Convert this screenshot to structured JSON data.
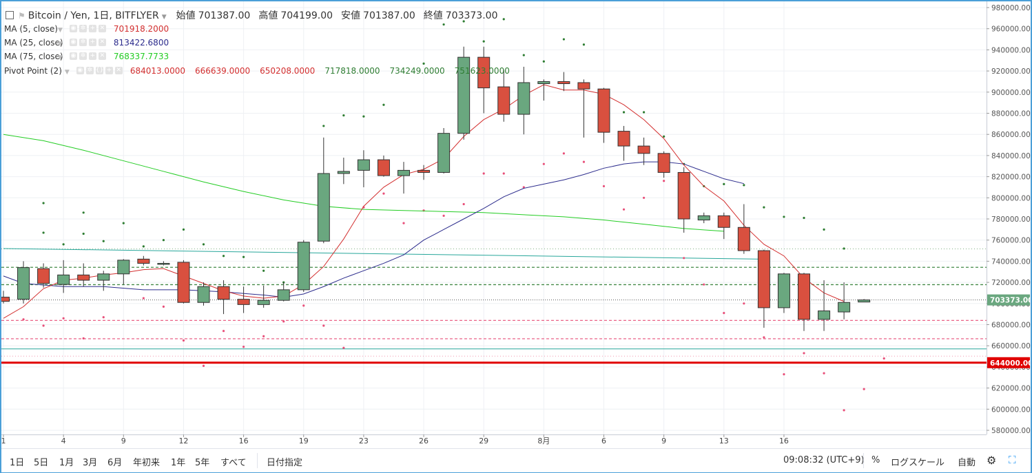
{
  "header": {
    "title": "Bitcoin / Yen, 1日, BITFLYER",
    "ohlc": [
      {
        "label": "始値",
        "value": "701387.00"
      },
      {
        "label": "高値",
        "value": "704199.00"
      },
      {
        "label": "安値",
        "value": "701387.00"
      },
      {
        "label": "終値",
        "value": "703373.00"
      }
    ]
  },
  "indicators": [
    {
      "name": "MA (5, close)",
      "values": [
        "701918.2000"
      ],
      "colors": [
        "#d32f2f"
      ]
    },
    {
      "name": "MA (25, close)",
      "values": [
        "813422.6800"
      ],
      "colors": [
        "#2b2b8c"
      ]
    },
    {
      "name": "MA (75, close)",
      "values": [
        "768337.7733"
      ],
      "colors": [
        "#22cc22"
      ]
    },
    {
      "name": "Pivot Point (2)",
      "values": [
        "684013.0000",
        "666639.0000",
        "650208.0000",
        "717818.0000",
        "734249.0000",
        "751623.0000"
      ],
      "colors": [
        "#d32f2f",
        "#d32f2f",
        "#d32f2f",
        "#2e7d32",
        "#2e7d32",
        "#2e7d32"
      ]
    }
  ],
  "bottom_bar": {
    "ranges": [
      "1日",
      "5日",
      "1月",
      "3月",
      "6月",
      "年初来",
      "1年",
      "5年",
      "すべて"
    ],
    "date_button": "日付指定",
    "time": "09:08:32 (UTC+9)",
    "percent": "%",
    "log_scale": "ログスケール",
    "auto": "自動",
    "settings_icon": "gear-icon",
    "fullscreen_icon": "fullscreen-icon"
  },
  "chart_data": {
    "type": "candlestick",
    "title": "Bitcoin / Yen, 1日, BITFLYER",
    "colors": {
      "up": "#6aa77f",
      "down": "#d9503f",
      "ma5": "#d32f2f",
      "ma25": "#2b2b8c",
      "ma75": "#22cc22",
      "trend": "#26a69a",
      "pivot_support": "#e8507a",
      "pivot_resistance": "#2e7d32",
      "hline": "#e00000"
    },
    "y_axis": {
      "min": 570000,
      "max": 985000,
      "ticks": [
        580000,
        600000,
        620000,
        640000,
        660000,
        680000,
        700000,
        720000,
        740000,
        760000,
        780000,
        800000,
        820000,
        840000,
        860000,
        880000,
        900000,
        920000,
        940000,
        960000,
        980000
      ]
    },
    "x_axis": {
      "first_index": 1,
      "last_index": 43.7,
      "ticks": [
        {
          "i": 1,
          "label": "1"
        },
        {
          "i": 4,
          "label": "4"
        },
        {
          "i": 7,
          "label": "9"
        },
        {
          "i": 10,
          "label": "12"
        },
        {
          "i": 13,
          "label": "16"
        },
        {
          "i": 16,
          "label": "19"
        },
        {
          "i": 19,
          "label": "23"
        },
        {
          "i": 22,
          "label": "26"
        },
        {
          "i": 25,
          "label": "29"
        },
        {
          "i": 28,
          "label": "8月"
        },
        {
          "i": 31,
          "label": "6"
        },
        {
          "i": 34,
          "label": "9"
        },
        {
          "i": 37,
          "label": "13"
        },
        {
          "i": 40,
          "label": "16"
        }
      ]
    },
    "candles": [
      {
        "o": 706000,
        "h": 712000,
        "l": 700000,
        "c": 702000
      },
      {
        "o": 704000,
        "h": 740000,
        "l": 700000,
        "c": 734000
      },
      {
        "o": 733000,
        "h": 738000,
        "l": 715000,
        "c": 719000
      },
      {
        "o": 718000,
        "h": 741000,
        "l": 710000,
        "c": 727000
      },
      {
        "o": 727000,
        "h": 738000,
        "l": 716000,
        "c": 722000
      },
      {
        "o": 722000,
        "h": 731000,
        "l": 712000,
        "c": 728000
      },
      {
        "o": 728000,
        "h": 742000,
        "l": 718000,
        "c": 741000
      },
      {
        "o": 742000,
        "h": 745000,
        "l": 736000,
        "c": 738000
      },
      {
        "o": 738000,
        "h": 740000,
        "l": 736000,
        "c": 738000
      },
      {
        "o": 739000,
        "h": 741000,
        "l": 700000,
        "c": 701000
      },
      {
        "o": 701000,
        "h": 720000,
        "l": 698000,
        "c": 716000
      },
      {
        "o": 716000,
        "h": 722000,
        "l": 690000,
        "c": 704000
      },
      {
        "o": 704000,
        "h": 716000,
        "l": 691000,
        "c": 699000
      },
      {
        "o": 699000,
        "h": 717000,
        "l": 696000,
        "c": 703000
      },
      {
        "o": 703000,
        "h": 720000,
        "l": 702000,
        "c": 713000
      },
      {
        "o": 713000,
        "h": 760000,
        "l": 711000,
        "c": 758000
      },
      {
        "o": 759000,
        "h": 857000,
        "l": 757000,
        "c": 823000
      },
      {
        "o": 823000,
        "h": 838000,
        "l": 813000,
        "c": 825000
      },
      {
        "o": 826000,
        "h": 845000,
        "l": 810000,
        "c": 836000
      },
      {
        "o": 836000,
        "h": 840000,
        "l": 820000,
        "c": 821000
      },
      {
        "o": 821000,
        "h": 834000,
        "l": 804000,
        "c": 826000
      },
      {
        "o": 826000,
        "h": 831000,
        "l": 817000,
        "c": 824000
      },
      {
        "o": 824000,
        "h": 866000,
        "l": 823000,
        "c": 861000
      },
      {
        "o": 861000,
        "h": 943000,
        "l": 855000,
        "c": 933000
      },
      {
        "o": 933000,
        "h": 943000,
        "l": 880000,
        "c": 904000
      },
      {
        "o": 905000,
        "h": 921000,
        "l": 872000,
        "c": 879000
      },
      {
        "o": 879000,
        "h": 924000,
        "l": 860000,
        "c": 909000
      },
      {
        "o": 908000,
        "h": 912000,
        "l": 892000,
        "c": 910000
      },
      {
        "o": 910000,
        "h": 919000,
        "l": 901000,
        "c": 908000
      },
      {
        "o": 909000,
        "h": 912000,
        "l": 857000,
        "c": 903000
      },
      {
        "o": 903000,
        "h": 904000,
        "l": 852000,
        "c": 862000
      },
      {
        "o": 863000,
        "h": 868000,
        "l": 835000,
        "c": 849000
      },
      {
        "o": 849000,
        "h": 857000,
        "l": 831000,
        "c": 842000
      },
      {
        "o": 842000,
        "h": 844000,
        "l": 819000,
        "c": 824000
      },
      {
        "o": 824000,
        "h": 829000,
        "l": 767000,
        "c": 780000
      },
      {
        "o": 779000,
        "h": 786000,
        "l": 776000,
        "c": 783000
      },
      {
        "o": 783000,
        "h": 786000,
        "l": 761000,
        "c": 772000
      },
      {
        "o": 772000,
        "h": 794000,
        "l": 747000,
        "c": 750000
      },
      {
        "o": 750000,
        "h": 751000,
        "l": 677000,
        "c": 696000
      },
      {
        "o": 696000,
        "h": 729000,
        "l": 691000,
        "c": 728000
      },
      {
        "o": 728000,
        "h": 729000,
        "l": 674000,
        "c": 685000
      },
      {
        "o": 685000,
        "h": 722000,
        "l": 674000,
        "c": 693000
      },
      {
        "o": 692000,
        "h": 720000,
        "l": 685000,
        "c": 701000
      },
      {
        "o": 701387,
        "h": 704199,
        "l": 701387,
        "c": 703373
      }
    ],
    "ma5": [
      [
        1,
        686000
      ],
      [
        2,
        697000
      ],
      [
        3,
        714000
      ],
      [
        4,
        722000
      ],
      [
        5,
        724000
      ],
      [
        6,
        727000
      ],
      [
        7,
        729000
      ],
      [
        8,
        732000
      ],
      [
        9,
        733000
      ],
      [
        10,
        726000
      ],
      [
        11,
        719000
      ],
      [
        12,
        712000
      ],
      [
        13,
        707000
      ],
      [
        14,
        705000
      ],
      [
        15,
        707000
      ],
      [
        16,
        718000
      ],
      [
        17,
        735000
      ],
      [
        18,
        761000
      ],
      [
        19,
        792000
      ],
      [
        20,
        810000
      ],
      [
        21,
        822000
      ],
      [
        22,
        827000
      ],
      [
        23,
        837000
      ],
      [
        24,
        858000
      ],
      [
        25,
        874000
      ],
      [
        26,
        884000
      ],
      [
        27,
        897000
      ],
      [
        28,
        907000
      ],
      [
        29,
        902000
      ],
      [
        30,
        902000
      ],
      [
        31,
        898000
      ],
      [
        32,
        888000
      ],
      [
        33,
        874000
      ],
      [
        34,
        856000
      ],
      [
        35,
        831000
      ],
      [
        36,
        811000
      ],
      [
        37,
        797000
      ],
      [
        38,
        774000
      ],
      [
        39,
        756000
      ],
      [
        40,
        745000
      ],
      [
        41,
        724000
      ],
      [
        42,
        710000
      ],
      [
        43,
        701918
      ]
    ],
    "ma25": [
      [
        1,
        726000
      ],
      [
        2,
        719000
      ],
      [
        4,
        716000
      ],
      [
        6,
        716000
      ],
      [
        8,
        713000
      ],
      [
        10,
        713000
      ],
      [
        12,
        711000
      ],
      [
        14,
        708000
      ],
      [
        15,
        706000
      ],
      [
        16,
        709000
      ],
      [
        17,
        716000
      ],
      [
        18,
        724000
      ],
      [
        19,
        731000
      ],
      [
        20,
        738000
      ],
      [
        21,
        746000
      ],
      [
        22,
        760000
      ],
      [
        23,
        770000
      ],
      [
        24,
        780000
      ],
      [
        25,
        790000
      ],
      [
        26,
        801000
      ],
      [
        27,
        809000
      ],
      [
        28,
        813000
      ],
      [
        29,
        817000
      ],
      [
        30,
        822000
      ],
      [
        31,
        828000
      ],
      [
        32,
        832000
      ],
      [
        33,
        834000
      ],
      [
        34,
        834000
      ],
      [
        35,
        832000
      ],
      [
        36,
        825000
      ],
      [
        37,
        818000
      ],
      [
        38,
        813423
      ]
    ],
    "ma75": [
      [
        1,
        860000
      ],
      [
        3,
        854000
      ],
      [
        5,
        845000
      ],
      [
        7,
        835000
      ],
      [
        9,
        825000
      ],
      [
        11,
        815000
      ],
      [
        13,
        806000
      ],
      [
        15,
        798000
      ],
      [
        17,
        792000
      ],
      [
        19,
        789000
      ],
      [
        21,
        788000
      ],
      [
        23,
        787000
      ],
      [
        25,
        786000
      ],
      [
        27,
        784000
      ],
      [
        29,
        782000
      ],
      [
        31,
        779000
      ],
      [
        33,
        775000
      ],
      [
        35,
        771000
      ],
      [
        37,
        768338
      ]
    ],
    "trend_line": [
      [
        1,
        752000
      ],
      [
        38.9,
        742000
      ]
    ],
    "pivot_levels": [
      {
        "value": 751623,
        "style": "dots",
        "kind": "resistance"
      },
      {
        "value": 734249,
        "style": "dashed",
        "kind": "resistance"
      },
      {
        "value": 717818,
        "style": "dashed",
        "kind": "resistance"
      },
      {
        "value": 684013,
        "style": "dashed",
        "kind": "support"
      },
      {
        "value": 666639,
        "style": "dashed",
        "kind": "support"
      },
      {
        "value": 650208,
        "style": "dots",
        "kind": "support"
      }
    ],
    "h_lines": [
      {
        "value": 644000,
        "label": "644000.00"
      },
      {
        "value": 657000
      }
    ],
    "last_price": {
      "value": 703373,
      "label": "703373.00"
    },
    "pivot_dots": {
      "resistance": [
        [
          3,
          795000
        ],
        [
          3,
          767000
        ],
        [
          4,
          756000
        ],
        [
          5,
          786000
        ],
        [
          5,
          766000
        ],
        [
          6,
          759000
        ],
        [
          7,
          776000
        ],
        [
          8,
          754000
        ],
        [
          9,
          760000
        ],
        [
          10,
          770000
        ],
        [
          11,
          756000
        ],
        [
          12,
          745000
        ],
        [
          13,
          744000
        ],
        [
          14,
          731000
        ],
        [
          15,
          720000
        ],
        [
          17,
          868000
        ],
        [
          18,
          878000
        ],
        [
          19,
          877000
        ],
        [
          20,
          888000
        ],
        [
          22,
          927000
        ],
        [
          23,
          964000
        ],
        [
          24,
          967000
        ],
        [
          25,
          948000
        ],
        [
          26,
          969000
        ],
        [
          27,
          935000
        ],
        [
          28,
          929000
        ],
        [
          29,
          950000
        ],
        [
          30,
          945000
        ],
        [
          31,
          899000
        ],
        [
          32,
          881000
        ],
        [
          33,
          881000
        ],
        [
          34,
          858000
        ],
        [
          35,
          832000
        ],
        [
          36,
          811000
        ],
        [
          37,
          813000
        ],
        [
          38,
          812000
        ],
        [
          39,
          791000
        ],
        [
          40,
          782000
        ],
        [
          41,
          781000
        ],
        [
          42,
          770000
        ],
        [
          43,
          752000
        ]
      ],
      "support": [
        [
          2,
          685000
        ],
        [
          3,
          679000
        ],
        [
          4,
          686000
        ],
        [
          5,
          667000
        ],
        [
          6,
          687000
        ],
        [
          8,
          705000
        ],
        [
          9,
          697000
        ],
        [
          10,
          665000
        ],
        [
          11,
          641000
        ],
        [
          12,
          674000
        ],
        [
          13,
          659000
        ],
        [
          14,
          669000
        ],
        [
          15,
          683000
        ],
        [
          16,
          698000
        ],
        [
          17,
          679000
        ],
        [
          18,
          658000
        ],
        [
          19,
          791000
        ],
        [
          20,
          804000
        ],
        [
          21,
          776000
        ],
        [
          22,
          788000
        ],
        [
          23,
          783000
        ],
        [
          24,
          794000
        ],
        [
          25,
          823000
        ],
        [
          26,
          823000
        ],
        [
          27,
          810000
        ],
        [
          28,
          832000
        ],
        [
          29,
          842000
        ],
        [
          30,
          834000
        ],
        [
          31,
          811000
        ],
        [
          32,
          789000
        ],
        [
          33,
          800000
        ],
        [
          34,
          816000
        ],
        [
          35,
          743000
        ],
        [
          36,
          718000
        ],
        [
          37,
          691000
        ],
        [
          38,
          700000
        ],
        [
          39,
          668000
        ],
        [
          40,
          633000
        ],
        [
          41,
          653000
        ],
        [
          42,
          634000
        ],
        [
          43,
          599000
        ],
        [
          44,
          619000
        ],
        [
          45,
          648000
        ]
      ]
    }
  }
}
